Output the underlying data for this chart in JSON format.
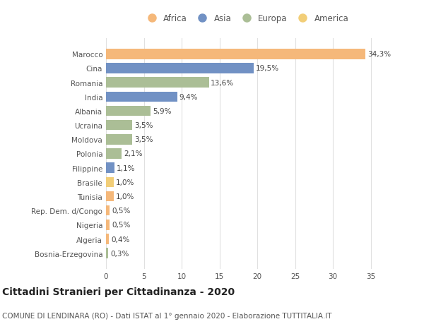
{
  "categories": [
    "Marocco",
    "Cina",
    "Romania",
    "India",
    "Albania",
    "Ucraina",
    "Moldova",
    "Polonia",
    "Filippine",
    "Brasile",
    "Tunisia",
    "Rep. Dem. d/Congo",
    "Nigeria",
    "Algeria",
    "Bosnia-Erzegovina"
  ],
  "values": [
    34.3,
    19.5,
    13.6,
    9.4,
    5.9,
    3.5,
    3.5,
    2.1,
    1.1,
    1.0,
    1.0,
    0.5,
    0.5,
    0.4,
    0.3
  ],
  "labels": [
    "34,3%",
    "19,5%",
    "13,6%",
    "9,4%",
    "5,9%",
    "3,5%",
    "3,5%",
    "2,1%",
    "1,1%",
    "1,0%",
    "1,0%",
    "0,5%",
    "0,5%",
    "0,4%",
    "0,3%"
  ],
  "continents": [
    "Africa",
    "Asia",
    "Europa",
    "Asia",
    "Europa",
    "Europa",
    "Europa",
    "Europa",
    "Asia",
    "America",
    "Africa",
    "Africa",
    "Africa",
    "Africa",
    "Europa"
  ],
  "colors": {
    "Africa": "#F5B87A",
    "Asia": "#7191C4",
    "Europa": "#ABBE96",
    "America": "#F2CE78"
  },
  "legend_order": [
    "Africa",
    "Asia",
    "Europa",
    "America"
  ],
  "xlim": [
    0,
    37
  ],
  "xticks": [
    0,
    5,
    10,
    15,
    20,
    25,
    30,
    35
  ],
  "title": "Cittadini Stranieri per Cittadinanza - 2020",
  "subtitle": "COMUNE DI LENDINARA (RO) - Dati ISTAT al 1° gennaio 2020 - Elaborazione TUTTITALIA.IT",
  "bg_color": "#ffffff",
  "grid_color": "#e0e0e0",
  "bar_height": 0.72,
  "title_fontsize": 10,
  "subtitle_fontsize": 7.5,
  "label_fontsize": 7.5,
  "tick_fontsize": 7.5,
  "legend_fontsize": 8.5
}
